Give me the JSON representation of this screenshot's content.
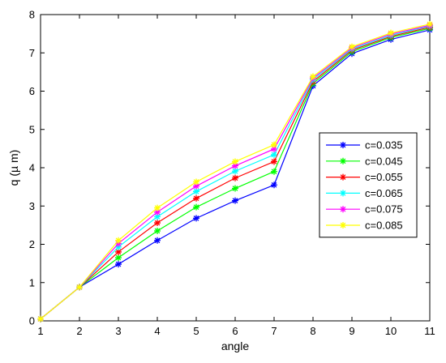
{
  "chart_data": {
    "type": "line",
    "title": "",
    "xlabel": "angle",
    "ylabel": "q (µ m)",
    "xlim": [
      1,
      11
    ],
    "ylim": [
      0,
      8
    ],
    "x": [
      1,
      2,
      3,
      4,
      5,
      6,
      7,
      8,
      9,
      10,
      11
    ],
    "x_ticks": [
      1,
      2,
      3,
      4,
      5,
      6,
      7,
      8,
      9,
      10,
      11
    ],
    "y_ticks": [
      0,
      1,
      2,
      3,
      4,
      5,
      6,
      7,
      8
    ],
    "grid": false,
    "legend": "right",
    "marker": "asterisk",
    "series": [
      {
        "name": "c=0.035",
        "color": "#0000ff",
        "values": [
          0.05,
          0.88,
          1.48,
          2.1,
          2.68,
          3.14,
          3.55,
          6.14,
          6.98,
          7.35,
          7.6
        ]
      },
      {
        "name": "c=0.045",
        "color": "#00ff00",
        "values": [
          0.05,
          0.88,
          1.65,
          2.35,
          2.97,
          3.46,
          3.9,
          6.2,
          7.03,
          7.4,
          7.64
        ]
      },
      {
        "name": "c=0.055",
        "color": "#ff0000",
        "values": [
          0.05,
          0.88,
          1.8,
          2.56,
          3.2,
          3.73,
          4.16,
          6.25,
          7.07,
          7.43,
          7.67
        ]
      },
      {
        "name": "c=0.065",
        "color": "#00ffff",
        "values": [
          0.05,
          0.88,
          1.93,
          2.72,
          3.38,
          3.91,
          4.34,
          6.3,
          7.1,
          7.46,
          7.7
        ]
      },
      {
        "name": "c=0.075",
        "color": "#ff00ff",
        "values": [
          0.05,
          0.88,
          2.02,
          2.84,
          3.52,
          4.05,
          4.49,
          6.34,
          7.13,
          7.49,
          7.72
        ]
      },
      {
        "name": "c=0.085",
        "color": "#ffff00",
        "values": [
          0.05,
          0.88,
          2.1,
          2.95,
          3.63,
          4.16,
          4.6,
          6.38,
          7.16,
          7.52,
          7.75
        ]
      }
    ]
  }
}
